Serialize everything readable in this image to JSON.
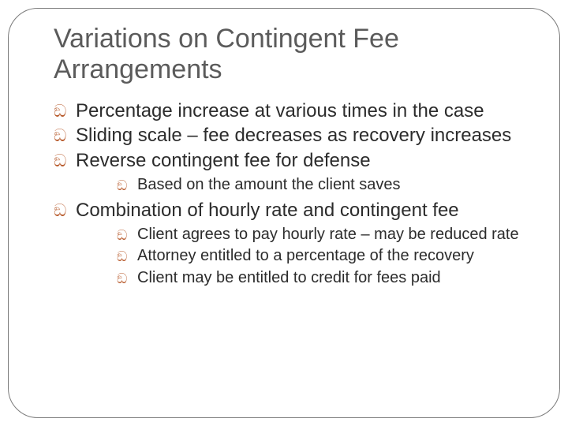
{
  "slide": {
    "title": "Variations on Contingent Fee Arrangements",
    "bullet_glyph": "ඞ",
    "title_color": "#5b5b5b",
    "body_color": "#2c2c2c",
    "bullet_color": "#b85c2e",
    "border_color": "#7a7a7a",
    "background_color": "#ffffff",
    "title_fontsize": 34,
    "body_fontsize_l1": 24,
    "body_fontsize_l2": 20,
    "border_radius": 38,
    "items": [
      {
        "text": "Percentage increase at various times in the case"
      },
      {
        "text": "Sliding scale – fee decreases as recovery increases"
      },
      {
        "text": "Reverse contingent fee for defense",
        "children": [
          {
            "text": "Based on the amount the client saves"
          }
        ]
      },
      {
        "text": "Combination of hourly rate and contingent fee",
        "children": [
          {
            "text": "Client agrees to pay hourly rate – may be reduced rate"
          },
          {
            "text": "Attorney entitled to a percentage of the recovery"
          },
          {
            "text": "Client may be entitled to credit for fees paid"
          }
        ]
      }
    ]
  }
}
